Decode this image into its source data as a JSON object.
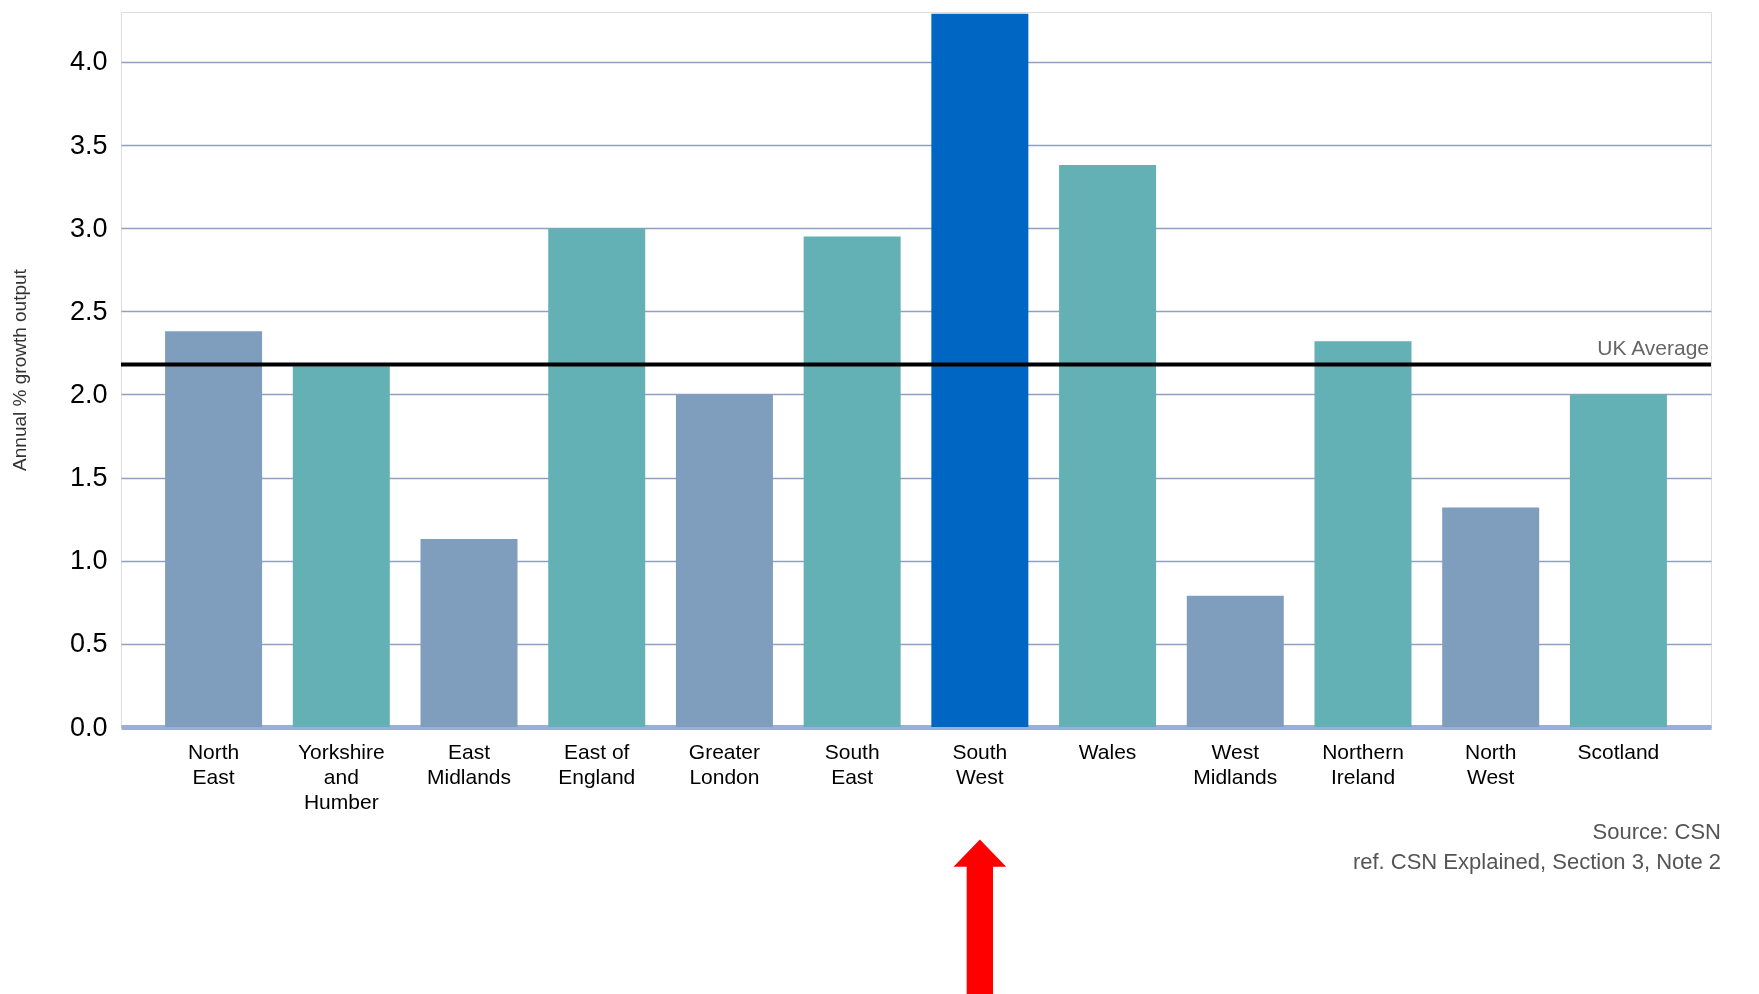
{
  "chart_data": {
    "type": "bar",
    "ylabel": "Annual % growth output",
    "categories": [
      "North\nEast",
      "Yorkshire\nand\nHumber",
      "East\nMidlands",
      "East of\nEngland",
      "Greater\nLondon",
      "South\nEast",
      "South\nWest",
      "Wales",
      "West\nMidlands",
      "Northern\nIreland",
      "North\nWest",
      "Scotland"
    ],
    "values": [
      2.38,
      2.17,
      1.13,
      3.0,
      2.0,
      2.95,
      4.29,
      3.38,
      0.79,
      2.32,
      1.32,
      2.0
    ],
    "colors": [
      "#7f9dbd",
      "#63b0b5",
      "#7f9dbd",
      "#63b0b5",
      "#7f9dbd",
      "#63b0b5",
      "#0066c4",
      "#63b0b5",
      "#7f9dbd",
      "#63b0b5",
      "#7f9dbd",
      "#63b0b5"
    ],
    "ylim": [
      0,
      4.3
    ],
    "yticks": [
      {
        "value": 0,
        "label": "0.0"
      },
      {
        "value": 0.5,
        "label": "0.5"
      },
      {
        "value": 1,
        "label": "1.0"
      },
      {
        "value": 1.5,
        "label": "1.5"
      },
      {
        "value": 2,
        "label": "2.0"
      },
      {
        "value": 2.5,
        "label": "2.5"
      },
      {
        "value": 3,
        "label": "3.0"
      },
      {
        "value": 3.5,
        "label": "3.5"
      },
      {
        "value": 4,
        "label": "4.0"
      }
    ],
    "grid": "y",
    "ref_lines": [
      {
        "axis": "y",
        "value": 2.18,
        "label": "UK Average",
        "color": "#000000"
      }
    ],
    "annotations": [
      "Source: CSN",
      "ref. CSN Explained, Section 3, Note 2"
    ]
  }
}
